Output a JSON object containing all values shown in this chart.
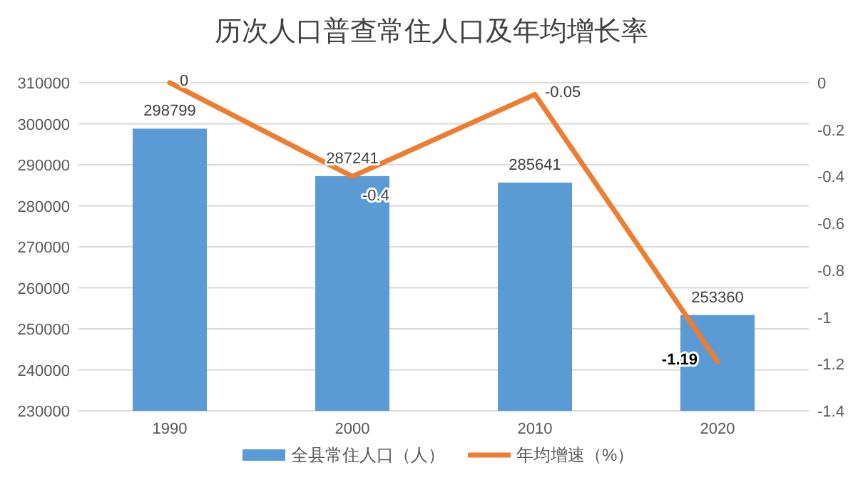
{
  "chart_data": {
    "type": "bar",
    "title": "历次人口普查常住人口及年均增长率",
    "categories": [
      "1990",
      "2000",
      "2010",
      "2020"
    ],
    "series": [
      {
        "name": "全县常住人口（人）",
        "color": "#5b9bd5",
        "values": [
          298799,
          287241,
          285641,
          253360
        ]
      },
      {
        "name": "年均增速（%）",
        "type": "line",
        "axis": "y2",
        "color": "#ed7d31",
        "values": [
          0,
          -0.4,
          -0.05,
          -1.19
        ]
      }
    ],
    "ylim": [
      230000,
      310000
    ],
    "yticks": [
      230000,
      240000,
      250000,
      260000,
      270000,
      280000,
      290000,
      300000,
      310000
    ],
    "y2lim": [
      -1.4,
      0
    ],
    "y2ticks": [
      -1.4,
      -1.2,
      -1,
      -0.8,
      -0.6,
      -0.4,
      -0.2,
      0
    ],
    "grid": "y",
    "legend": "bottom",
    "data_labels": true,
    "marker": "none"
  }
}
